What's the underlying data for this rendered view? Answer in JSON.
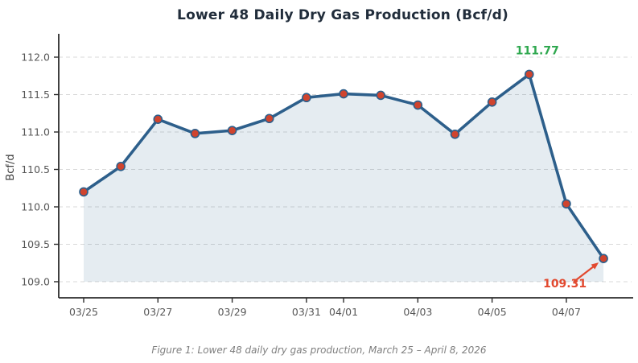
{
  "chart_data": {
    "type": "line",
    "title": "Lower 48 Daily Dry Gas Production (Bcf/d)",
    "xlabel": "",
    "ylabel": "Bcf/d",
    "x": [
      "03/25",
      "03/26",
      "03/27",
      "03/28",
      "03/29",
      "03/30",
      "03/31",
      "04/01",
      "04/02",
      "04/03",
      "04/04",
      "04/05",
      "04/06",
      "04/07",
      "04/08"
    ],
    "series": [
      {
        "name": "Lower 48 daily dry gas production",
        "values": [
          110.2,
          110.54,
          111.17,
          110.98,
          111.02,
          111.18,
          111.46,
          111.51,
          111.49,
          111.36,
          110.97,
          111.4,
          111.77,
          110.04,
          109.31
        ]
      }
    ],
    "x_tick_labels": [
      "03/25",
      "03/27",
      "03/29",
      "03/31",
      "04/01",
      "04/03",
      "04/05",
      "04/07"
    ],
    "y_ticks": [
      109.0,
      109.5,
      110.0,
      110.5,
      111.0,
      111.5,
      112.0
    ],
    "ylim": [
      108.78,
      112.28
    ],
    "grid": "horizontal-dashed",
    "legend": "none",
    "area_fill": true,
    "area_baseline": 109.0,
    "annotations": [
      {
        "role": "max",
        "text": "111.77",
        "index": 12,
        "color": "#2fa84f",
        "arrow": false
      },
      {
        "role": "min",
        "text": "109.31",
        "index": 14,
        "color": "#e2492f",
        "arrow": true
      }
    ],
    "colors": {
      "line": "#2d5f8b",
      "marker": "#d0442e",
      "marker_edge": "#2d5f8b",
      "area": "#2d5f8b",
      "area_opacity": 0.12,
      "grid": "#d9d9d9",
      "spine": "#2b2b2b",
      "tick_label": "#575757",
      "axis_label": "#404040",
      "title": "#212d3b"
    }
  },
  "caption": {
    "text": "Figure 1: Lower 48 daily dry gas production, March 25 – April 8, 2026"
  }
}
